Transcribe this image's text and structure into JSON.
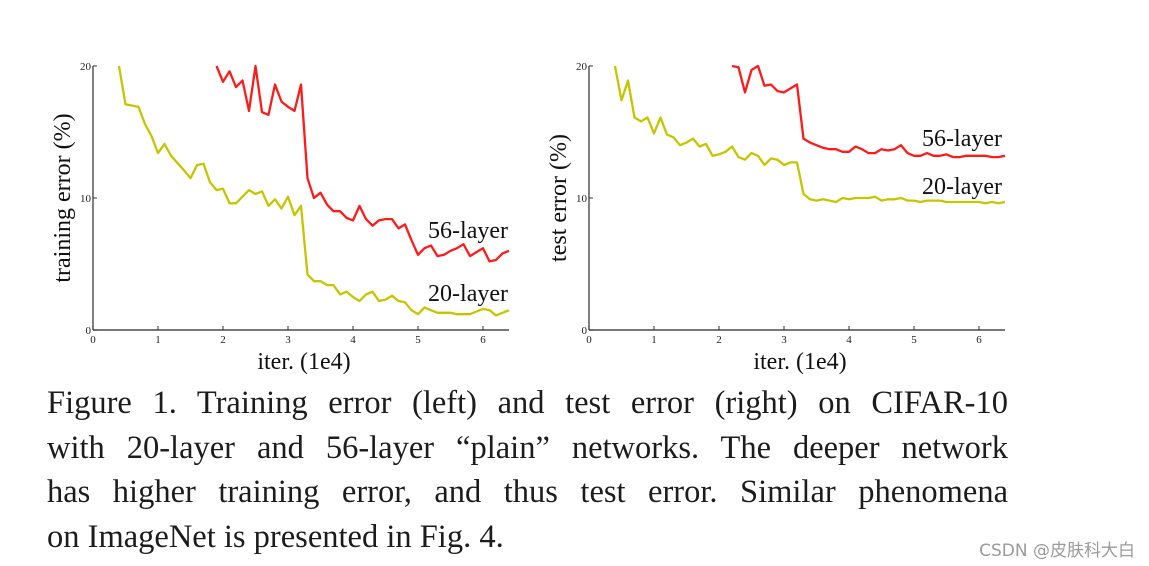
{
  "chart_data": [
    {
      "type": "line",
      "title": "",
      "xlabel": "iter. (1e4)",
      "ylabel": "training error (%)",
      "xlim": [
        0,
        6.4
      ],
      "ylim": [
        0,
        20
      ],
      "xticks": [
        0,
        1,
        2,
        3,
        4,
        5,
        6
      ],
      "yticks": [
        0,
        10,
        20
      ],
      "grid": false,
      "legend_position": "inline-right",
      "series": [
        {
          "name": "56-layer",
          "color": "#ff1a1a",
          "x": [
            1.9,
            2.0,
            2.1,
            2.2,
            2.3,
            2.4,
            2.5,
            2.6,
            2.7,
            2.8,
            2.9,
            3.0,
            3.1,
            3.2,
            3.3,
            3.4,
            3.5,
            3.6,
            3.7,
            3.8,
            3.9,
            4.0,
            4.1,
            4.2,
            4.3,
            4.4,
            4.5,
            4.6,
            4.7,
            4.8,
            4.9,
            5.0,
            5.1,
            5.2,
            5.3,
            5.4,
            5.5,
            5.6,
            5.7,
            5.8,
            5.9,
            6.0,
            6.1,
            6.2,
            6.3,
            6.4
          ],
          "values": [
            20.0,
            18.8,
            19.6,
            18.4,
            18.9,
            16.6,
            20.0,
            16.5,
            16.3,
            18.6,
            17.3,
            16.9,
            16.6,
            18.6,
            11.5,
            10.0,
            10.4,
            9.5,
            9.0,
            9.0,
            8.5,
            8.3,
            9.4,
            8.4,
            7.9,
            8.3,
            8.4,
            8.4,
            7.7,
            8.0,
            6.8,
            5.7,
            6.2,
            6.4,
            5.6,
            5.7,
            6.0,
            6.2,
            6.5,
            5.6,
            5.9,
            6.2,
            5.2,
            5.3,
            5.8,
            6.0
          ]
        },
        {
          "name": "20-layer",
          "color": "#c8c400",
          "x": [
            0.4,
            0.5,
            0.7,
            0.8,
            0.9,
            1.0,
            1.1,
            1.2,
            1.4,
            1.5,
            1.6,
            1.7,
            1.8,
            1.9,
            2.0,
            2.1,
            2.2,
            2.3,
            2.4,
            2.5,
            2.6,
            2.7,
            2.8,
            2.9,
            3.0,
            3.1,
            3.2,
            3.3,
            3.4,
            3.5,
            3.6,
            3.7,
            3.8,
            3.9,
            4.0,
            4.1,
            4.2,
            4.3,
            4.4,
            4.5,
            4.6,
            4.7,
            4.8,
            4.9,
            5.0,
            5.1,
            5.2,
            5.3,
            5.4,
            5.5,
            5.6,
            5.7,
            5.8,
            5.9,
            6.0,
            6.1,
            6.2,
            6.3,
            6.4
          ],
          "values": [
            20.0,
            17.1,
            16.9,
            15.6,
            14.7,
            13.4,
            14.1,
            13.2,
            12.1,
            11.5,
            12.5,
            12.6,
            11.2,
            10.6,
            10.7,
            9.6,
            9.6,
            10.1,
            10.6,
            10.3,
            10.5,
            9.4,
            9.9,
            9.2,
            10.1,
            8.7,
            9.4,
            4.2,
            3.7,
            3.7,
            3.4,
            3.4,
            2.7,
            2.9,
            2.5,
            2.2,
            2.7,
            2.9,
            2.2,
            2.3,
            2.6,
            2.2,
            2.1,
            1.5,
            1.2,
            1.7,
            1.5,
            1.3,
            1.3,
            1.3,
            1.2,
            1.2,
            1.2,
            1.4,
            1.6,
            1.5,
            1.1,
            1.3,
            1.5
          ]
        }
      ]
    },
    {
      "type": "line",
      "title": "",
      "xlabel": "iter. (1e4)",
      "ylabel": "test error (%)",
      "xlim": [
        0,
        6.4
      ],
      "ylim": [
        0,
        20
      ],
      "xticks": [
        0,
        1,
        2,
        3,
        4,
        5,
        6
      ],
      "yticks": [
        0,
        10,
        20
      ],
      "grid": false,
      "legend_position": "inline-right",
      "series": [
        {
          "name": "56-layer",
          "color": "#ff1a1a",
          "x": [
            2.2,
            2.3,
            2.4,
            2.5,
            2.6,
            2.7,
            2.8,
            2.9,
            3.0,
            3.1,
            3.2,
            3.3,
            3.4,
            3.5,
            3.6,
            3.7,
            3.8,
            3.9,
            4.0,
            4.1,
            4.2,
            4.3,
            4.4,
            4.5,
            4.6,
            4.7,
            4.8,
            4.9,
            5.0,
            5.1,
            5.2,
            5.3,
            5.4,
            5.5,
            5.6,
            5.7,
            5.8,
            5.9,
            6.0,
            6.1,
            6.2,
            6.3,
            6.4
          ],
          "values": [
            20.0,
            19.9,
            18.0,
            19.7,
            20.0,
            18.5,
            18.6,
            18.1,
            18.0,
            18.3,
            18.6,
            14.5,
            14.2,
            14.0,
            13.8,
            13.7,
            13.7,
            13.5,
            13.5,
            13.9,
            13.7,
            13.4,
            13.4,
            13.7,
            13.6,
            13.7,
            14.0,
            13.4,
            13.2,
            13.2,
            13.4,
            13.2,
            13.2,
            13.3,
            13.1,
            13.1,
            13.2,
            13.2,
            13.2,
            13.2,
            13.1,
            13.1,
            13.2
          ]
        },
        {
          "name": "20-layer",
          "color": "#c8c400",
          "x": [
            0.4,
            0.5,
            0.6,
            0.7,
            0.8,
            0.9,
            1.0,
            1.1,
            1.2,
            1.3,
            1.4,
            1.5,
            1.6,
            1.7,
            1.8,
            1.9,
            2.0,
            2.1,
            2.2,
            2.3,
            2.4,
            2.5,
            2.6,
            2.7,
            2.8,
            2.9,
            3.0,
            3.1,
            3.2,
            3.3,
            3.4,
            3.5,
            3.6,
            3.7,
            3.8,
            3.9,
            4.0,
            4.1,
            4.2,
            4.3,
            4.4,
            4.5,
            4.6,
            4.7,
            4.8,
            4.9,
            5.0,
            5.1,
            5.2,
            5.3,
            5.4,
            5.5,
            5.6,
            5.7,
            5.8,
            5.9,
            6.0,
            6.1,
            6.2,
            6.3,
            6.4
          ],
          "values": [
            20.0,
            17.4,
            18.9,
            16.1,
            15.8,
            16.1,
            14.9,
            16.1,
            14.8,
            14.6,
            14.0,
            14.2,
            14.5,
            13.9,
            14.1,
            13.2,
            13.3,
            13.5,
            13.9,
            13.1,
            12.9,
            13.4,
            13.2,
            12.5,
            13.0,
            12.9,
            12.5,
            12.7,
            12.7,
            10.3,
            9.9,
            9.8,
            9.9,
            9.8,
            9.7,
            10.0,
            9.9,
            10.0,
            10.0,
            10.0,
            10.1,
            9.8,
            9.9,
            9.9,
            10.0,
            9.8,
            9.8,
            9.7,
            9.8,
            9.8,
            9.8,
            9.7,
            9.7,
            9.7,
            9.7,
            9.7,
            9.7,
            9.6,
            9.7,
            9.6,
            9.7
          ]
        }
      ]
    }
  ],
  "caption": {
    "lines": [
      "Figure 1. Training error (left) and test error (right) on CIFAR-10",
      "with 20-layer and 56-layer “plain” networks. The deeper network",
      "has higher training error, and thus test error.  Similar phenomena",
      "on ImageNet is presented in Fig. 4."
    ]
  },
  "watermark": "CSDN @皮肤科大白"
}
